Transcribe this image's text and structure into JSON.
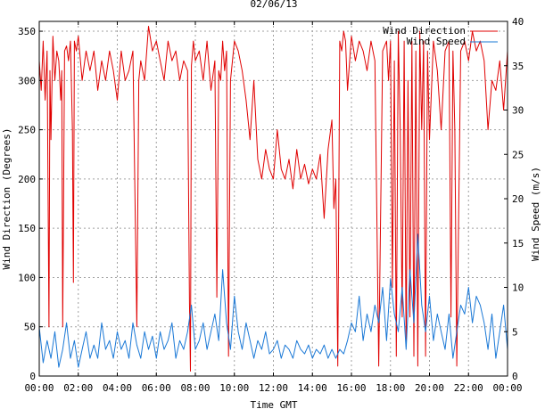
{
  "chart_data": {
    "type": "line",
    "title": "02/06/13",
    "xlabel": "Time GMT",
    "ylabel_left": "Wind Direction (Degrees)",
    "ylabel_right": "Wind Speed (m/s)",
    "x_ticks": [
      "00:00",
      "02:00",
      "04:00",
      "06:00",
      "08:00",
      "10:00",
      "12:00",
      "14:00",
      "16:00",
      "18:00",
      "20:00",
      "22:00",
      "00:00"
    ],
    "xlim_hours": [
      0,
      24
    ],
    "ylim_left": [
      0,
      360
    ],
    "ylim_right": [
      0,
      40
    ],
    "y_ticks_left": [
      0,
      50,
      100,
      150,
      200,
      250,
      300,
      350
    ],
    "y_ticks_right": [
      0,
      5,
      10,
      15,
      20,
      25,
      30,
      35,
      40
    ],
    "grid": true,
    "legend_position": "top-right",
    "series": [
      {
        "name": "Wind Direction",
        "color": "#e00000",
        "axis": "left",
        "x_hours": [
          0.0,
          0.1,
          0.2,
          0.3,
          0.4,
          0.5,
          0.55,
          0.6,
          0.7,
          0.8,
          0.9,
          1.0,
          1.1,
          1.15,
          1.2,
          1.3,
          1.4,
          1.5,
          1.6,
          1.7,
          1.75,
          1.8,
          1.9,
          2.0,
          2.2,
          2.4,
          2.5,
          2.6,
          2.8,
          3.0,
          3.2,
          3.4,
          3.6,
          3.8,
          4.0,
          4.2,
          4.4,
          4.6,
          4.8,
          5.0,
          5.1,
          5.2,
          5.3,
          5.4,
          5.6,
          5.8,
          6.0,
          6.2,
          6.4,
          6.6,
          6.8,
          7.0,
          7.2,
          7.4,
          7.6,
          7.7,
          7.75,
          7.8,
          7.9,
          8.0,
          8.2,
          8.4,
          8.6,
          8.8,
          9.0,
          9.1,
          9.2,
          9.3,
          9.4,
          9.5,
          9.6,
          9.7,
          9.8,
          10.0,
          10.2,
          10.4,
          10.6,
          10.8,
          11.0,
          11.2,
          11.4,
          11.6,
          11.8,
          12.0,
          12.2,
          12.4,
          12.6,
          12.8,
          13.0,
          13.2,
          13.4,
          13.6,
          13.8,
          14.0,
          14.2,
          14.4,
          14.6,
          14.8,
          15.0,
          15.1,
          15.2,
          15.3,
          15.4,
          15.5,
          15.6,
          15.7,
          15.8,
          16.0,
          16.2,
          16.4,
          16.6,
          16.8,
          17.0,
          17.2,
          17.4,
          17.6,
          17.8,
          17.9,
          18.0,
          18.1,
          18.2,
          18.3,
          18.4,
          18.5,
          18.6,
          18.7,
          18.8,
          18.9,
          19.0,
          19.1,
          19.2,
          19.3,
          19.4,
          19.5,
          19.6,
          19.7,
          19.8,
          19.9,
          20.0,
          20.2,
          20.4,
          20.6,
          20.8,
          21.0,
          21.1,
          21.2,
          21.3,
          21.4,
          21.6,
          21.8,
          22.0,
          22.2,
          22.4,
          22.6,
          22.8,
          23.0,
          23.2,
          23.4,
          23.6,
          23.8,
          24.0
        ],
        "values": [
          320,
          290,
          340,
          280,
          330,
          50,
          310,
          240,
          345,
          300,
          330,
          320,
          280,
          310,
          50,
          330,
          335,
          320,
          340,
          250,
          95,
          340,
          330,
          345,
          300,
          330,
          320,
          310,
          330,
          290,
          320,
          300,
          330,
          310,
          280,
          330,
          300,
          310,
          330,
          50,
          300,
          320,
          310,
          300,
          355,
          330,
          340,
          320,
          300,
          340,
          320,
          330,
          300,
          320,
          310,
          75,
          5,
          315,
          340,
          320,
          330,
          300,
          340,
          290,
          320,
          80,
          310,
          300,
          340,
          310,
          330,
          20,
          300,
          340,
          330,
          310,
          280,
          240,
          300,
          220,
          200,
          230,
          210,
          200,
          250,
          210,
          200,
          220,
          190,
          230,
          200,
          215,
          195,
          210,
          200,
          225,
          160,
          230,
          260,
          170,
          200,
          10,
          340,
          330,
          350,
          340,
          290,
          345,
          320,
          340,
          330,
          310,
          340,
          320,
          10,
          330,
          340,
          300,
          340,
          90,
          320,
          20,
          350,
          250,
          60,
          340,
          30,
          300,
          60,
          340,
          20,
          330,
          10,
          350,
          250,
          340,
          20,
          330,
          240,
          340,
          310,
          250,
          330,
          340,
          60,
          330,
          250,
          10,
          330,
          340,
          320,
          350,
          330,
          340,
          320,
          250,
          300,
          290,
          320,
          270,
          330
        ]
      },
      {
        "name": "Wind Speed",
        "color": "#1a78d6",
        "axis": "right",
        "x_hours": [
          0.0,
          0.2,
          0.4,
          0.6,
          0.8,
          1.0,
          1.2,
          1.4,
          1.6,
          1.8,
          2.0,
          2.2,
          2.4,
          2.6,
          2.8,
          3.0,
          3.2,
          3.4,
          3.6,
          3.8,
          4.0,
          4.2,
          4.4,
          4.6,
          4.8,
          5.0,
          5.2,
          5.4,
          5.6,
          5.8,
          6.0,
          6.2,
          6.4,
          6.6,
          6.8,
          7.0,
          7.2,
          7.4,
          7.6,
          7.8,
          8.0,
          8.2,
          8.4,
          8.6,
          8.8,
          9.0,
          9.2,
          9.4,
          9.6,
          9.8,
          10.0,
          10.2,
          10.4,
          10.6,
          10.8,
          11.0,
          11.2,
          11.4,
          11.6,
          11.8,
          12.0,
          12.2,
          12.4,
          12.6,
          12.8,
          13.0,
          13.2,
          13.4,
          13.6,
          13.8,
          14.0,
          14.2,
          14.4,
          14.6,
          14.8,
          15.0,
          15.2,
          15.4,
          15.6,
          15.8,
          16.0,
          16.2,
          16.4,
          16.6,
          16.8,
          17.0,
          17.2,
          17.4,
          17.6,
          17.8,
          18.0,
          18.2,
          18.4,
          18.6,
          18.8,
          19.0,
          19.2,
          19.4,
          19.6,
          19.8,
          20.0,
          20.2,
          20.4,
          20.6,
          20.8,
          21.0,
          21.2,
          21.4,
          21.6,
          21.8,
          22.0,
          22.2,
          22.4,
          22.6,
          22.8,
          23.0,
          23.2,
          23.4,
          23.6,
          23.8,
          24.0
        ],
        "values": [
          5.5,
          1.5,
          4,
          2,
          5,
          1,
          3,
          6,
          2,
          4,
          1,
          3,
          5,
          2,
          3.5,
          2,
          6,
          3,
          4,
          2,
          5,
          3,
          4,
          2,
          6,
          3.5,
          2,
          5,
          3,
          4.5,
          2,
          5,
          3,
          4,
          6,
          2,
          4,
          3,
          5,
          8,
          3,
          4,
          6,
          3,
          5,
          7,
          4,
          12,
          6,
          3,
          9,
          5,
          3,
          6,
          4,
          2,
          4,
          3,
          5,
          2.5,
          3,
          4,
          2,
          3.5,
          3,
          2,
          4,
          3,
          2.5,
          3.5,
          2,
          3,
          2.5,
          3.5,
          2,
          3,
          2,
          3,
          2.5,
          4,
          6,
          5,
          9,
          4,
          7,
          5,
          8,
          6,
          10,
          4,
          11,
          7,
          5,
          10,
          3,
          12,
          6,
          16,
          8,
          5,
          9,
          4,
          7,
          5,
          3,
          7,
          2,
          5,
          8,
          7,
          10,
          6,
          9,
          8,
          6,
          3,
          7,
          2,
          5,
          8,
          3
        ]
      }
    ]
  }
}
